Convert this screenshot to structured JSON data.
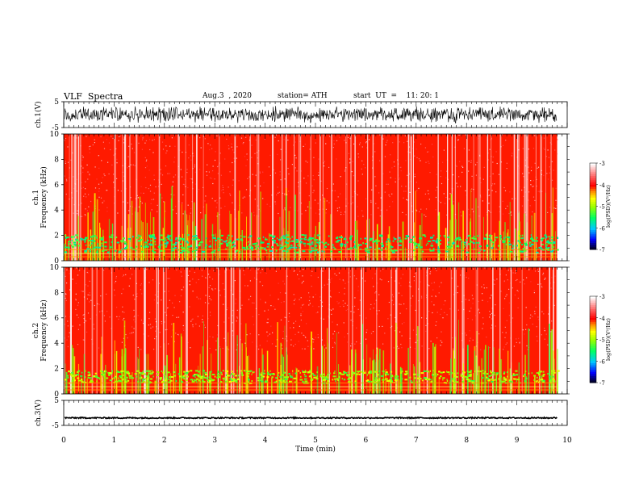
{
  "header": {
    "title": "VLF  Spectra",
    "date": "Aug.3  , 2020",
    "station": "station= ATH",
    "start_ut": "start  UT  =    11: 20: 1"
  },
  "chart_data": [
    {
      "type": "line",
      "panel": "ch1-waveform",
      "ylabel": "ch.1(V)",
      "yticks": [
        "5",
        "-5"
      ],
      "ylim": [
        -5,
        5
      ],
      "xlim": [
        0,
        10
      ],
      "data_extent_min": 9.8,
      "color": "#000000"
    },
    {
      "type": "heatmap",
      "panel": "ch1-spectrogram",
      "ylabel_1": "ch.1",
      "ylabel_2": "Frequency  (kHz)",
      "yticks": [
        "0",
        "2",
        "4",
        "6",
        "8",
        "10"
      ],
      "ylim": [
        0,
        10
      ],
      "xlim": [
        0,
        10
      ],
      "colorbar": {
        "label": "log(PSD)(V²/Hz)",
        "ticks": [
          "-3",
          "-4",
          "-5",
          "-6",
          "-7"
        ],
        "range": [
          -7,
          -3
        ]
      }
    },
    {
      "type": "heatmap",
      "panel": "ch2-spectrogram",
      "ylabel_1": "ch.2",
      "ylabel_2": "Frequency  (kHz)",
      "yticks": [
        "0",
        "2",
        "4",
        "6",
        "8",
        "10"
      ],
      "ylim": [
        0,
        10
      ],
      "xlim": [
        0,
        10
      ],
      "colorbar": {
        "label": "log(PSD)(V²/Hz)",
        "ticks": [
          "-3",
          "-4",
          "-5",
          "-6",
          "-7"
        ],
        "range": [
          -7,
          -3
        ]
      }
    },
    {
      "type": "line",
      "panel": "ch3-waveform",
      "ylabel": "ch.3(V)",
      "yticks": [
        "5",
        "-5"
      ],
      "ylim": [
        -5,
        5
      ],
      "xlim": [
        0,
        10
      ],
      "xlabel": "Time  (min)",
      "xticks": [
        "0",
        "1",
        "2",
        "3",
        "4",
        "5",
        "6",
        "7",
        "8",
        "9",
        "10"
      ],
      "data_extent_min": 9.8,
      "level": -2,
      "color": "#000000"
    }
  ]
}
